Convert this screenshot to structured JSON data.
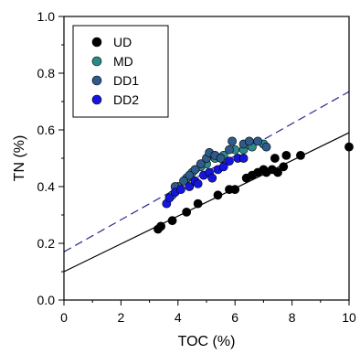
{
  "chart_data": {
    "type": "scatter",
    "xlabel": "TOC (%)",
    "ylabel": "TN (%)",
    "xlim": [
      0,
      10
    ],
    "ylim": [
      0,
      1.0
    ],
    "xticks": [
      "0",
      "2",
      "4",
      "6",
      "8",
      "10"
    ],
    "yticks": [
      "0.0",
      "0.2",
      "0.4",
      "0.6",
      "0.8",
      "1.0"
    ],
    "grid": false,
    "legend_position": "top-left",
    "series": [
      {
        "name": "UD",
        "color": "#000000",
        "points": [
          [
            3.3,
            0.25
          ],
          [
            3.4,
            0.26
          ],
          [
            3.8,
            0.28
          ],
          [
            4.3,
            0.31
          ],
          [
            4.7,
            0.34
          ],
          [
            5.4,
            0.37
          ],
          [
            5.8,
            0.39
          ],
          [
            6.0,
            0.39
          ],
          [
            6.4,
            0.43
          ],
          [
            6.6,
            0.44
          ],
          [
            6.8,
            0.45
          ],
          [
            7.0,
            0.46
          ],
          [
            7.1,
            0.45
          ],
          [
            7.3,
            0.46
          ],
          [
            7.4,
            0.5
          ],
          [
            7.5,
            0.45
          ],
          [
            7.7,
            0.47
          ],
          [
            7.8,
            0.51
          ],
          [
            8.3,
            0.51
          ],
          [
            10.0,
            0.54
          ]
        ]
      },
      {
        "name": "MD",
        "color": "#2a8a8a",
        "points": [
          [
            3.8,
            0.37
          ],
          [
            4.0,
            0.4
          ],
          [
            4.3,
            0.43
          ],
          [
            4.5,
            0.45
          ],
          [
            4.8,
            0.47
          ],
          [
            5.0,
            0.48
          ],
          [
            5.3,
            0.5
          ],
          [
            5.6,
            0.51
          ],
          [
            6.0,
            0.53
          ],
          [
            6.3,
            0.53
          ],
          [
            6.6,
            0.54
          ],
          [
            7.0,
            0.55
          ]
        ]
      },
      {
        "name": "DD1",
        "color": "#2f5a8a",
        "points": [
          [
            3.9,
            0.4
          ],
          [
            4.2,
            0.42
          ],
          [
            4.4,
            0.44
          ],
          [
            4.6,
            0.46
          ],
          [
            4.8,
            0.48
          ],
          [
            5.0,
            0.5
          ],
          [
            5.1,
            0.52
          ],
          [
            5.3,
            0.51
          ],
          [
            5.5,
            0.5
          ],
          [
            5.8,
            0.53
          ],
          [
            5.9,
            0.56
          ],
          [
            6.3,
            0.55
          ],
          [
            6.5,
            0.56
          ],
          [
            6.8,
            0.56
          ],
          [
            7.1,
            0.54
          ]
        ]
      },
      {
        "name": "DD2",
        "color": "#1515e0",
        "points": [
          [
            3.6,
            0.34
          ],
          [
            3.7,
            0.36
          ],
          [
            3.9,
            0.38
          ],
          [
            4.1,
            0.39
          ],
          [
            4.4,
            0.4
          ],
          [
            4.6,
            0.42
          ],
          [
            4.7,
            0.41
          ],
          [
            4.9,
            0.44
          ],
          [
            5.1,
            0.45
          ],
          [
            5.2,
            0.43
          ],
          [
            5.4,
            0.46
          ],
          [
            5.6,
            0.47
          ],
          [
            5.8,
            0.49
          ],
          [
            6.1,
            0.5
          ],
          [
            6.3,
            0.5
          ]
        ]
      }
    ],
    "lines": [
      {
        "style": "solid",
        "color": "#000000",
        "x": [
          0,
          10
        ],
        "y": [
          0.1,
          0.59
        ]
      },
      {
        "style": "dashed",
        "color": "#2a2a8c",
        "x": [
          0,
          10
        ],
        "y": [
          0.17,
          0.735
        ]
      }
    ]
  }
}
